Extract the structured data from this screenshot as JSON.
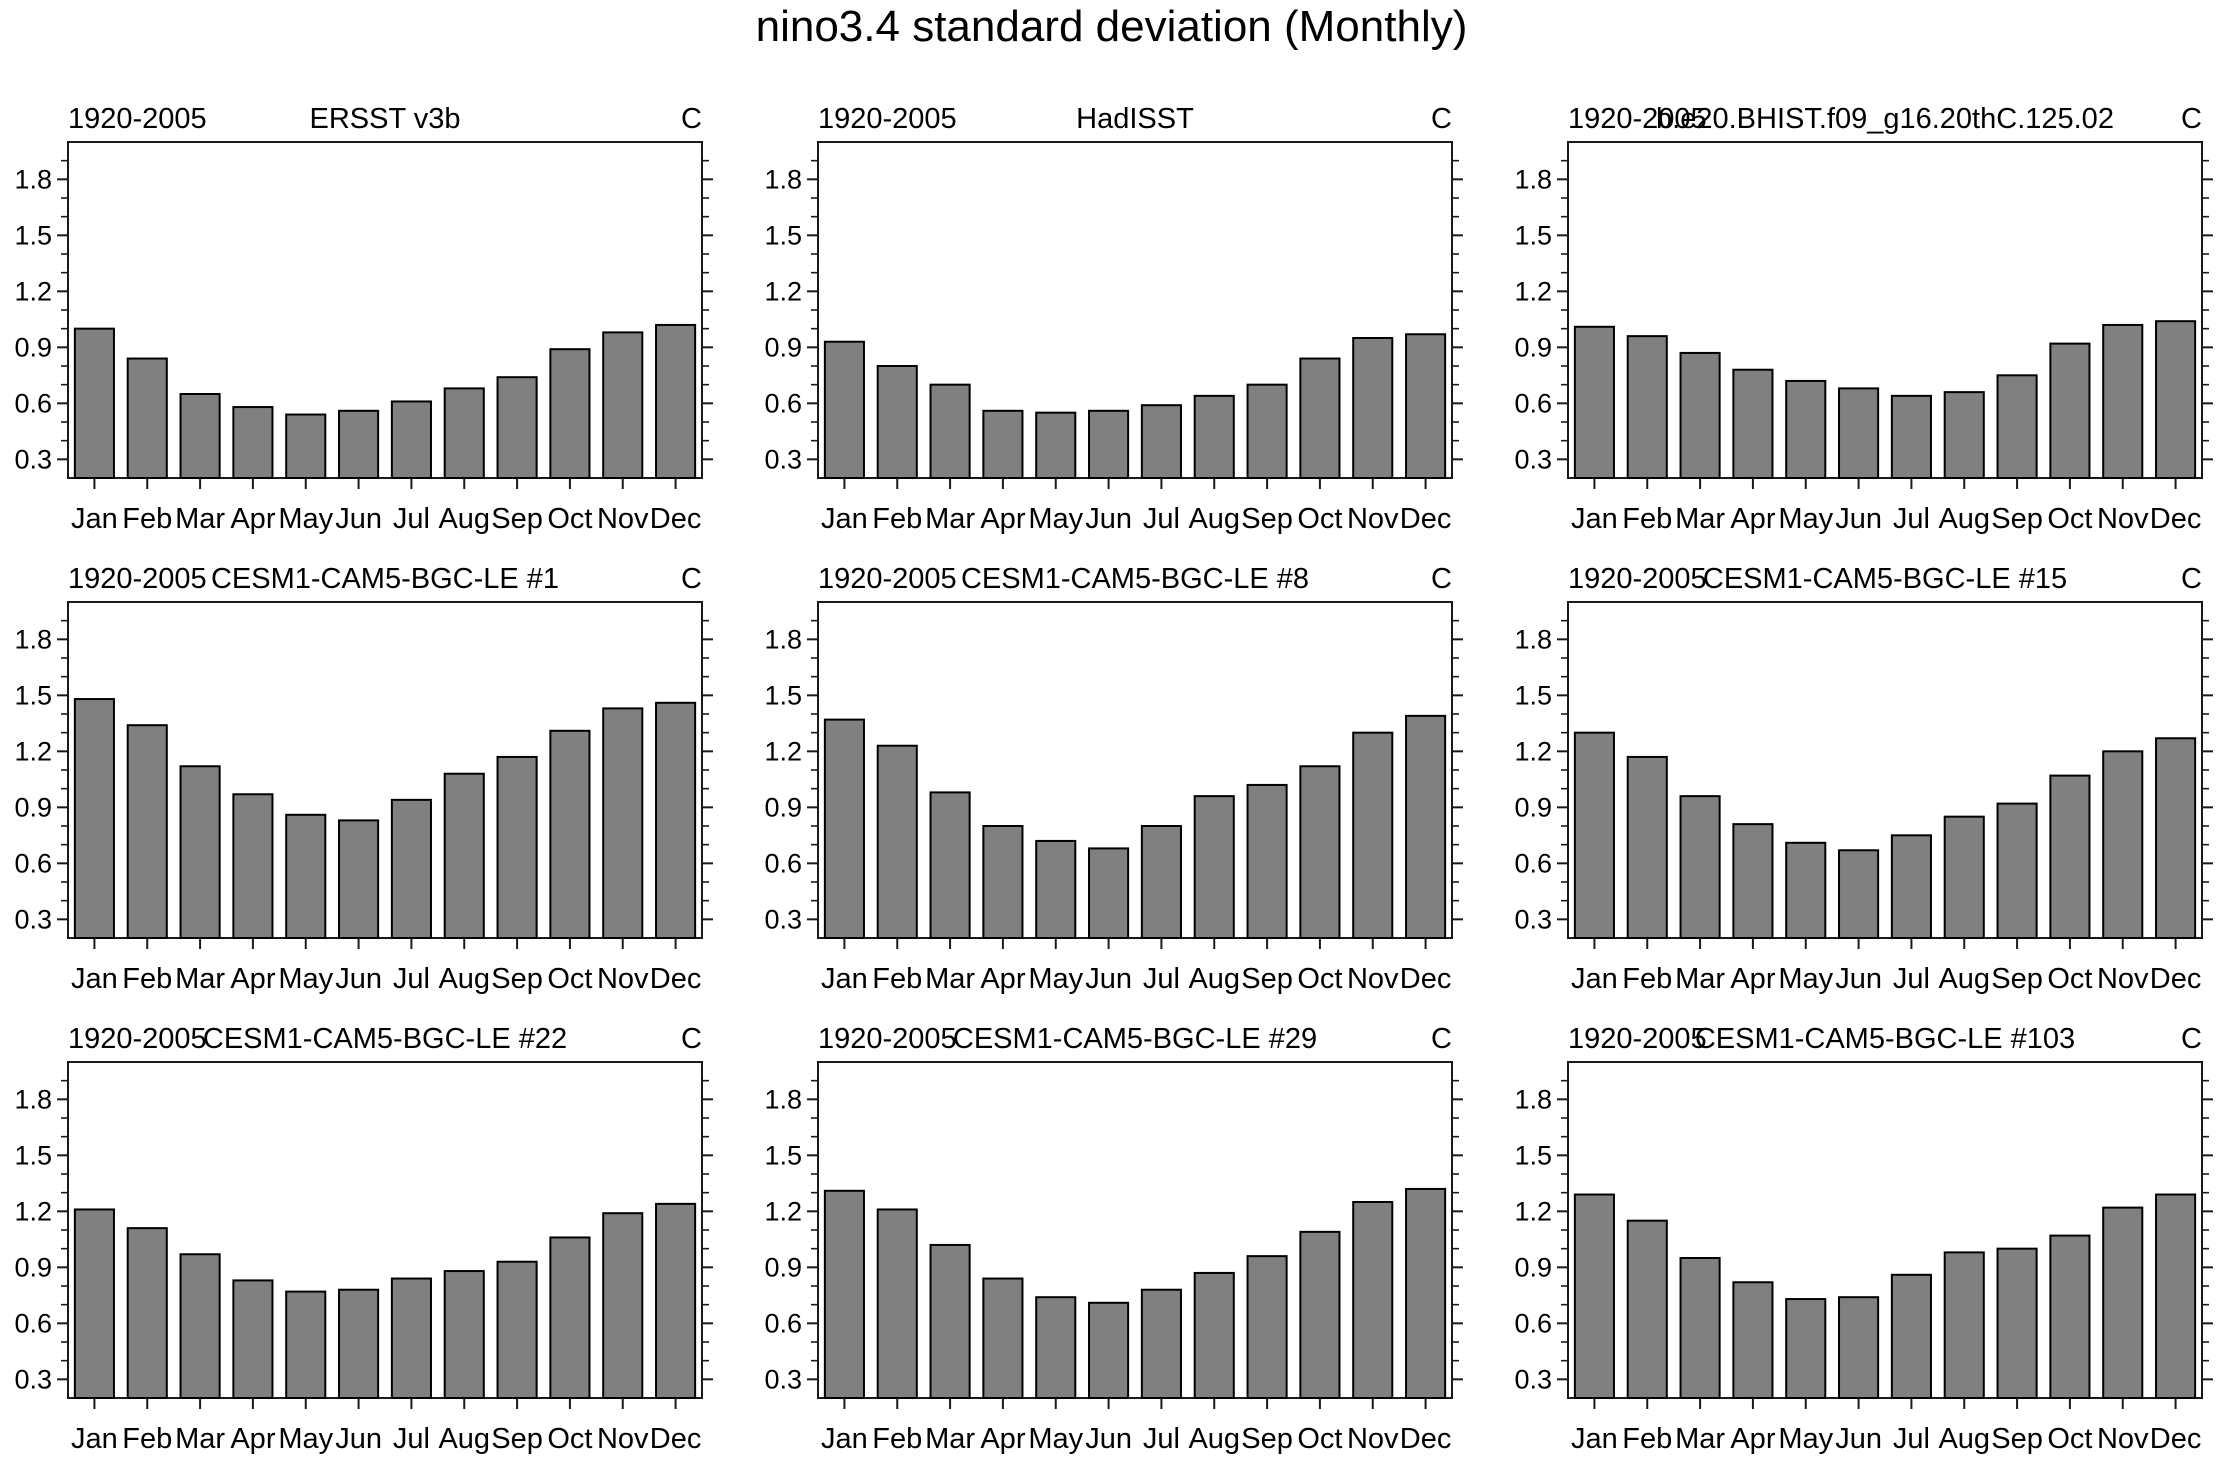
{
  "page_title": "nino3.4 standard deviation (Monthly)",
  "colors": {
    "bar_fill": "#808080",
    "bar_border": "#000000",
    "frame": "#1a1a1a",
    "text": "#000000",
    "background": "#ffffff"
  },
  "axis": {
    "months": [
      "Jan",
      "Feb",
      "Mar",
      "Apr",
      "May",
      "Jun",
      "Jul",
      "Aug",
      "Sep",
      "Oct",
      "Nov",
      "Dec"
    ],
    "y_major_ticks": [
      0.3,
      0.6,
      0.9,
      1.2,
      1.5,
      1.8
    ],
    "y_minor_step": 0.1,
    "ylim": [
      0.2,
      2.0
    ]
  },
  "chart_data": [
    {
      "type": "bar",
      "period_label": "1920-2005",
      "title": "ERSST v3b",
      "units_label": "C",
      "categories": [
        "Jan",
        "Feb",
        "Mar",
        "Apr",
        "May",
        "Jun",
        "Jul",
        "Aug",
        "Sep",
        "Oct",
        "Nov",
        "Dec"
      ],
      "values": [
        1.0,
        0.84,
        0.65,
        0.58,
        0.54,
        0.56,
        0.61,
        0.68,
        0.74,
        0.89,
        0.98,
        1.02
      ],
      "ylim": [
        0.2,
        2.0
      ],
      "yticks": [
        0.3,
        0.6,
        0.9,
        1.2,
        1.5,
        1.8
      ]
    },
    {
      "type": "bar",
      "period_label": "1920-2005",
      "title": "HadISST",
      "units_label": "C",
      "categories": [
        "Jan",
        "Feb",
        "Mar",
        "Apr",
        "May",
        "Jun",
        "Jul",
        "Aug",
        "Sep",
        "Oct",
        "Nov",
        "Dec"
      ],
      "values": [
        0.93,
        0.8,
        0.7,
        0.56,
        0.55,
        0.56,
        0.59,
        0.64,
        0.7,
        0.84,
        0.95,
        0.97
      ],
      "ylim": [
        0.2,
        2.0
      ],
      "yticks": [
        0.3,
        0.6,
        0.9,
        1.2,
        1.5,
        1.8
      ]
    },
    {
      "type": "bar",
      "period_label": "1920-2005",
      "title": "b.e20.BHIST.f09_g16.20thC.125.02",
      "units_label": "C",
      "categories": [
        "Jan",
        "Feb",
        "Mar",
        "Apr",
        "May",
        "Jun",
        "Jul",
        "Aug",
        "Sep",
        "Oct",
        "Nov",
        "Dec"
      ],
      "values": [
        1.01,
        0.96,
        0.87,
        0.78,
        0.72,
        0.68,
        0.64,
        0.66,
        0.75,
        0.92,
        1.02,
        1.04
      ],
      "ylim": [
        0.2,
        2.0
      ],
      "yticks": [
        0.3,
        0.6,
        0.9,
        1.2,
        1.5,
        1.8
      ]
    },
    {
      "type": "bar",
      "period_label": "1920-2005",
      "title": "CESM1-CAM5-BGC-LE #1",
      "units_label": "C",
      "categories": [
        "Jan",
        "Feb",
        "Mar",
        "Apr",
        "May",
        "Jun",
        "Jul",
        "Aug",
        "Sep",
        "Oct",
        "Nov",
        "Dec"
      ],
      "values": [
        1.48,
        1.34,
        1.12,
        0.97,
        0.86,
        0.83,
        0.94,
        1.08,
        1.17,
        1.31,
        1.43,
        1.46
      ],
      "ylim": [
        0.2,
        2.0
      ],
      "yticks": [
        0.3,
        0.6,
        0.9,
        1.2,
        1.5,
        1.8
      ]
    },
    {
      "type": "bar",
      "period_label": "1920-2005",
      "title": "CESM1-CAM5-BGC-LE #8",
      "units_label": "C",
      "categories": [
        "Jan",
        "Feb",
        "Mar",
        "Apr",
        "May",
        "Jun",
        "Jul",
        "Aug",
        "Sep",
        "Oct",
        "Nov",
        "Dec"
      ],
      "values": [
        1.37,
        1.23,
        0.98,
        0.8,
        0.72,
        0.68,
        0.8,
        0.96,
        1.02,
        1.12,
        1.3,
        1.39
      ],
      "ylim": [
        0.2,
        2.0
      ],
      "yticks": [
        0.3,
        0.6,
        0.9,
        1.2,
        1.5,
        1.8
      ]
    },
    {
      "type": "bar",
      "period_label": "1920-2005",
      "title": "CESM1-CAM5-BGC-LE #15",
      "units_label": "C",
      "categories": [
        "Jan",
        "Feb",
        "Mar",
        "Apr",
        "May",
        "Jun",
        "Jul",
        "Aug",
        "Sep",
        "Oct",
        "Nov",
        "Dec"
      ],
      "values": [
        1.3,
        1.17,
        0.96,
        0.81,
        0.71,
        0.67,
        0.75,
        0.85,
        0.92,
        1.07,
        1.2,
        1.27
      ],
      "ylim": [
        0.2,
        2.0
      ],
      "yticks": [
        0.3,
        0.6,
        0.9,
        1.2,
        1.5,
        1.8
      ]
    },
    {
      "type": "bar",
      "period_label": "1920-2005",
      "title": "CESM1-CAM5-BGC-LE #22",
      "units_label": "C",
      "categories": [
        "Jan",
        "Feb",
        "Mar",
        "Apr",
        "May",
        "Jun",
        "Jul",
        "Aug",
        "Sep",
        "Oct",
        "Nov",
        "Dec"
      ],
      "values": [
        1.21,
        1.11,
        0.97,
        0.83,
        0.77,
        0.78,
        0.84,
        0.88,
        0.93,
        1.06,
        1.19,
        1.24
      ],
      "ylim": [
        0.2,
        2.0
      ],
      "yticks": [
        0.3,
        0.6,
        0.9,
        1.2,
        1.5,
        1.8
      ]
    },
    {
      "type": "bar",
      "period_label": "1920-2005",
      "title": "CESM1-CAM5-BGC-LE #29",
      "units_label": "C",
      "categories": [
        "Jan",
        "Feb",
        "Mar",
        "Apr",
        "May",
        "Jun",
        "Jul",
        "Aug",
        "Sep",
        "Oct",
        "Nov",
        "Dec"
      ],
      "values": [
        1.31,
        1.21,
        1.02,
        0.84,
        0.74,
        0.71,
        0.78,
        0.87,
        0.96,
        1.09,
        1.25,
        1.32
      ],
      "ylim": [
        0.2,
        2.0
      ],
      "yticks": [
        0.3,
        0.6,
        0.9,
        1.2,
        1.5,
        1.8
      ]
    },
    {
      "type": "bar",
      "period_label": "1920-2005",
      "title": "CESM1-CAM5-BGC-LE #103",
      "units_label": "C",
      "categories": [
        "Jan",
        "Feb",
        "Mar",
        "Apr",
        "May",
        "Jun",
        "Jul",
        "Aug",
        "Sep",
        "Oct",
        "Nov",
        "Dec"
      ],
      "values": [
        1.29,
        1.15,
        0.95,
        0.82,
        0.73,
        0.74,
        0.86,
        0.98,
        1.0,
        1.07,
        1.22,
        1.29
      ],
      "ylim": [
        0.2,
        2.0
      ],
      "yticks": [
        0.3,
        0.6,
        0.9,
        1.2,
        1.5,
        1.8
      ]
    }
  ]
}
